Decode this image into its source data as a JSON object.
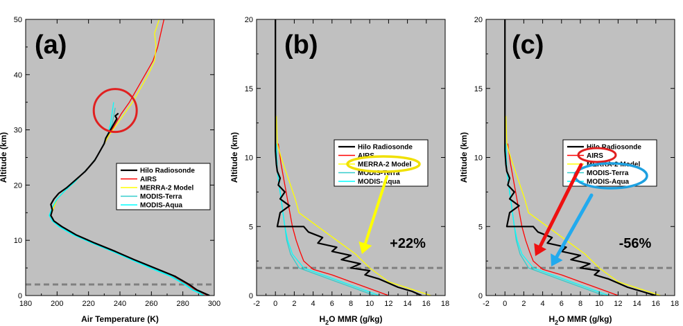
{
  "colors": {
    "plot_bg": "#c0c0c0",
    "hilo": "#000000",
    "airs": "#ff0000",
    "merra": "#ffff00",
    "terra": "#33cccc",
    "aqua": "#00ffff",
    "dashed": "#808080",
    "circle_red": "#e02020",
    "ellipse_yellow": "#f0e000",
    "ellipse_blue": "#1ea0e0",
    "arrow_yellow": "#ffff00",
    "arrow_red": "#ee1111",
    "arrow_blue": "#22aaee"
  },
  "chart_data": [
    {
      "type": "line",
      "panel_label": "(a)",
      "xlabel": "Air Temperature (K)",
      "ylabel": "Altitude (km)",
      "xlim": [
        180,
        300
      ],
      "ylim": [
        0,
        50
      ],
      "xticks": [
        "180",
        "200",
        "220",
        "240",
        "260",
        "280",
        "300"
      ],
      "yticks": [
        "0",
        "10",
        "20",
        "30",
        "40",
        "50"
      ],
      "dashed_altitude_km": 2,
      "legend": [
        "Hilo Radiosonde",
        "AIRS",
        "MERRA-2 Model",
        "MODIS-Terra",
        "MODIS-Aqua"
      ],
      "series": [
        {
          "name": "Hilo Radiosonde",
          "x": [
            297,
            293,
            289,
            284,
            275,
            262,
            249,
            237,
            224,
            212,
            203,
            198,
            196,
            197,
            196,
            198,
            201,
            206,
            210,
            214,
            218,
            221,
            224,
            226,
            228,
            230,
            231,
            232,
            233,
            234,
            235,
            236,
            237,
            238,
            237,
            239
          ],
          "y": [
            0,
            0.5,
            1,
            2,
            3.5,
            5,
            6.5,
            8,
            9.5,
            11,
            12.5,
            13.5,
            14.5,
            15.5,
            16.5,
            17.5,
            18.5,
            19.5,
            20.5,
            21.5,
            22.5,
            23.5,
            24.5,
            25.5,
            26.5,
            27.5,
            28.5,
            29,
            29.5,
            30,
            30.5,
            31,
            31.5,
            32,
            32.5,
            33
          ]
        },
        {
          "name": "AIRS",
          "x": [
            296,
            292,
            288,
            283,
            274,
            262,
            249,
            237,
            224,
            212,
            203,
            198,
            196,
            198,
            200,
            205,
            211,
            216,
            221,
            225,
            229,
            233,
            237,
            241,
            246,
            251,
            256,
            261,
            264,
            266,
            268
          ],
          "y": [
            0,
            0.5,
            1,
            2,
            3.5,
            5,
            6.5,
            8,
            9.5,
            11,
            12.5,
            13.5,
            14.5,
            16,
            17.5,
            19,
            20.5,
            22,
            23.5,
            25,
            27,
            29,
            31,
            33,
            35,
            37.5,
            40,
            42.5,
            45,
            47.5,
            50
          ]
        },
        {
          "name": "MERRA-2 Model",
          "x": [
            297,
            293,
            289,
            284,
            275,
            262,
            249,
            237,
            224,
            212,
            203,
            198,
            196,
            198,
            200,
            205,
            211,
            216,
            221,
            225,
            229,
            233,
            238,
            243,
            248,
            253,
            258,
            262,
            263,
            262,
            265
          ],
          "y": [
            0,
            0.5,
            1,
            2,
            3.5,
            5,
            6.5,
            8,
            9.5,
            11,
            12.5,
            13.5,
            14.5,
            16,
            17.5,
            19,
            20.5,
            22,
            23.5,
            25,
            27,
            29,
            31,
            33,
            35,
            37.5,
            40,
            42.5,
            45,
            47.5,
            50
          ]
        },
        {
          "name": "MODIS-Terra",
          "x": [
            294,
            291,
            287,
            282,
            273,
            260,
            248,
            236,
            223,
            211,
            202,
            197,
            195,
            197,
            200,
            205,
            211,
            216,
            221,
            225,
            229,
            232,
            235,
            237
          ],
          "y": [
            0,
            0.5,
            1,
            2,
            3.5,
            5,
            6.5,
            8,
            9.5,
            11,
            12.5,
            13.5,
            14.5,
            16,
            17.5,
            19,
            20.5,
            22,
            23.5,
            25,
            27,
            29,
            31,
            34
          ]
        },
        {
          "name": "MODIS-Aqua",
          "x": [
            293,
            290,
            286,
            281,
            272,
            259,
            247,
            235,
            222,
            210,
            201,
            197,
            195,
            197,
            200,
            205,
            211,
            216,
            221,
            225,
            229,
            232,
            234,
            236
          ],
          "y": [
            0,
            0.5,
            1,
            2,
            3.5,
            5,
            6.5,
            8,
            9.5,
            11,
            12.5,
            13.5,
            14.5,
            16,
            17.5,
            19,
            20.5,
            22,
            23.5,
            25,
            27,
            29,
            31,
            35
          ]
        }
      ],
      "annotations": [
        {
          "type": "circle",
          "x": 237,
          "y": 33.5,
          "color_key": "circle_red"
        }
      ]
    },
    {
      "type": "line",
      "panel_label": "(b)",
      "xlabel_main": "H",
      "xlabel_sub": "2",
      "xlabel_rest": "O MMR (g/kg)",
      "ylabel": "Altitude (km)",
      "xlim": [
        -2,
        18
      ],
      "ylim": [
        0,
        20
      ],
      "xticks": [
        "-2",
        "0",
        "2",
        "4",
        "6",
        "8",
        "10",
        "12",
        "14",
        "16",
        "18"
      ],
      "yticks": [
        "0",
        "5",
        "10",
        "15",
        "20"
      ],
      "dashed_altitude_km": 2,
      "percent_change": "+22%",
      "legend": [
        "Hilo Radiosonde",
        "AIRS",
        "MERRA-2 Model",
        "MODIS-Terra",
        "MODIS-Aqua"
      ],
      "highlighted_entry": "MERRA-2 Model",
      "series": [
        {
          "name": "Hilo Radiosonde",
          "x": [
            15.5,
            14.5,
            13,
            12,
            11,
            9.5,
            10,
            8,
            9,
            7,
            8,
            6,
            6.5,
            4.5,
            5,
            3.5,
            3,
            2,
            0.2,
            0.5,
            1.5,
            0.5,
            1,
            0.3,
            0.5,
            0.2,
            0.1,
            0,
            0,
            0
          ],
          "y": [
            0,
            0.3,
            0.6,
            0.9,
            1.2,
            1.5,
            1.8,
            2.0,
            2.3,
            2.6,
            2.9,
            3.2,
            3.5,
            3.8,
            4.2,
            4.6,
            5.0,
            5.0,
            5.0,
            6.0,
            6.5,
            7.0,
            7.5,
            8.0,
            8.5,
            9.0,
            9.5,
            10.5,
            15,
            20
          ]
        },
        {
          "name": "AIRS",
          "x": [
            12,
            10,
            8,
            6,
            4,
            3,
            2.6,
            2.2,
            1.8,
            1.4,
            1.0,
            0.6,
            0.3
          ],
          "y": [
            0,
            0.5,
            1,
            1.5,
            1.9,
            2.5,
            3.2,
            4,
            5,
            6.5,
            8,
            9.5,
            11
          ]
        },
        {
          "name": "MERRA-2 Model",
          "x": [
            16.5,
            12,
            10,
            8.5,
            6.5,
            4.5,
            2.5,
            2.1,
            1.6,
            1.1,
            0.6,
            0.2,
            0.1
          ],
          "y": [
            0,
            1,
            2,
            3,
            4,
            5,
            6,
            7,
            8,
            9,
            10,
            11,
            13
          ]
        },
        {
          "name": "MODIS-Terra",
          "x": [
            10.5,
            8.5,
            6.5,
            4.5,
            2.5,
            1.6,
            1.2,
            1.0,
            0.8,
            0.6,
            0.4,
            0.2,
            0.1
          ],
          "y": [
            0,
            0.5,
            1,
            1.5,
            2,
            3,
            4,
            5,
            6,
            7,
            8,
            9,
            11
          ]
        },
        {
          "name": "MODIS-Aqua",
          "x": [
            11,
            9,
            7,
            5,
            3,
            1.8,
            1.3,
            1.0,
            0.8,
            0.6,
            0.4,
            0.2,
            0.1
          ],
          "y": [
            0,
            0.5,
            1,
            1.5,
            2,
            3,
            4,
            5,
            6,
            7,
            8,
            9,
            11
          ]
        }
      ]
    },
    {
      "type": "line",
      "panel_label": "(c)",
      "xlabel_main": "H",
      "xlabel_sub": "2",
      "xlabel_rest": "O MMR (g/kg)",
      "ylabel": "Altitude (km)",
      "xlim": [
        -2,
        18
      ],
      "ylim": [
        0,
        20
      ],
      "xticks": [
        "-2",
        "0",
        "2",
        "4",
        "6",
        "8",
        "10",
        "12",
        "14",
        "16",
        "18"
      ],
      "yticks": [
        "0",
        "5",
        "10",
        "15",
        "20"
      ],
      "dashed_altitude_km": 2,
      "percent_change": "-56%",
      "legend": [
        "Hilo Radiosonde",
        "AIRS",
        "MERRA-2 Model",
        "MODIS-Terra",
        "MODIS-Aqua"
      ],
      "highlighted_entries": [
        "AIRS",
        "MODIS-Terra",
        "MODIS-Aqua"
      ],
      "series": [
        {
          "name": "Hilo Radiosonde",
          "x": [
            16,
            14.5,
            13,
            12,
            11,
            9.5,
            10,
            8,
            9,
            7,
            8,
            6,
            6.5,
            4.5,
            5,
            3.5,
            3,
            2,
            0.2,
            0.5,
            1.5,
            0.5,
            1,
            0.3,
            0.5,
            0.2,
            0.1,
            0,
            0,
            0
          ],
          "y": [
            0,
            0.3,
            0.6,
            0.9,
            1.2,
            1.5,
            1.8,
            2.0,
            2.3,
            2.6,
            2.9,
            3.2,
            3.5,
            3.8,
            4.2,
            4.6,
            5.0,
            5.0,
            5.0,
            6.0,
            6.5,
            7.0,
            7.5,
            8.0,
            8.5,
            9.0,
            9.5,
            10.5,
            15,
            20
          ]
        },
        {
          "name": "AIRS",
          "x": [
            12,
            10,
            8,
            6,
            4,
            3,
            2.6,
            2.2,
            1.8,
            1.4,
            1.0,
            0.6,
            0.3
          ],
          "y": [
            0,
            0.5,
            1,
            1.5,
            1.9,
            2.5,
            3.2,
            4,
            5,
            6.5,
            8,
            9.5,
            11
          ]
        },
        {
          "name": "MERRA-2 Model",
          "x": [
            16.5,
            12,
            10,
            8.5,
            6.5,
            4.5,
            2.5,
            2.1,
            1.6,
            1.1,
            0.6,
            0.2,
            0.1
          ],
          "y": [
            0,
            1,
            2,
            3,
            4,
            5,
            6,
            7,
            8,
            9,
            10,
            11,
            13
          ]
        },
        {
          "name": "MODIS-Terra",
          "x": [
            10.5,
            8.5,
            6.5,
            4.5,
            2.5,
            1.6,
            1.2,
            1.0,
            0.8,
            0.6,
            0.4,
            0.2,
            0.1
          ],
          "y": [
            0,
            0.5,
            1,
            1.5,
            2,
            3,
            4,
            5,
            6,
            7,
            8,
            9,
            11
          ]
        },
        {
          "name": "MODIS-Aqua",
          "x": [
            11,
            9,
            7,
            5,
            3,
            1.8,
            1.3,
            1.0,
            0.8,
            0.6,
            0.4,
            0.2,
            0.1
          ],
          "y": [
            0,
            0.5,
            1,
            1.5,
            2,
            3,
            4,
            5,
            6,
            7,
            8,
            9,
            11
          ]
        }
      ]
    }
  ]
}
